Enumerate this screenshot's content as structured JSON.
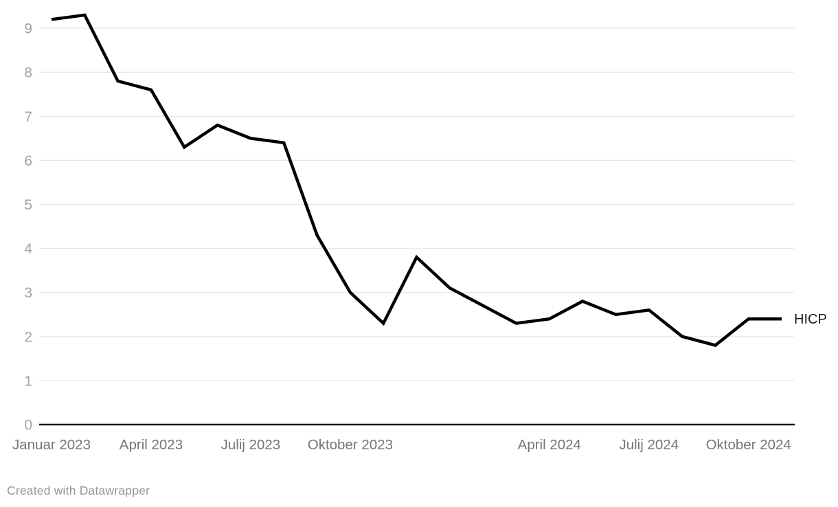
{
  "chart_data": {
    "type": "line",
    "title": "",
    "x": [
      "Januar 2023",
      "Februar 2023",
      "Marec 2023",
      "April 2023",
      "Maj 2023",
      "Junij 2023",
      "Julij 2023",
      "Avgust 2023",
      "September 2023",
      "Oktober 2023",
      "November 2023",
      "December 2023",
      "Januar 2024",
      "Februar 2024",
      "Marec 2024",
      "April 2024",
      "Maj 2024",
      "Junij 2024",
      "Julij 2024",
      "Avgust 2024",
      "September 2024",
      "Oktober 2024",
      "November 2024"
    ],
    "series": [
      {
        "name": "HICP",
        "values": [
          9.2,
          9.3,
          7.8,
          7.6,
          6.3,
          6.8,
          6.5,
          6.4,
          4.3,
          3.0,
          2.3,
          3.8,
          3.1,
          2.7,
          2.3,
          2.4,
          2.8,
          2.5,
          2.6,
          2.0,
          1.8,
          2.4,
          2.4
        ]
      }
    ],
    "line_label": "HICP",
    "xlabel": "",
    "ylabel": "",
    "ylim": [
      0,
      9.3
    ],
    "y_ticks": [
      0,
      1,
      2,
      3,
      4,
      5,
      6,
      7,
      8,
      9
    ],
    "x_tick_labels": [
      {
        "label": "Januar 2023",
        "index": 0
      },
      {
        "label": "April 2023",
        "index": 3
      },
      {
        "label": "Julij 2023",
        "index": 6
      },
      {
        "label": "Oktober 2023",
        "index": 9
      },
      {
        "label": "April 2024",
        "index": 15
      },
      {
        "label": "Julij 2024",
        "index": 18
      },
      {
        "label": "Oktober 2024",
        "index": 21
      }
    ],
    "grid": "horizontal",
    "legend_position": "line-end-right"
  },
  "colors": {
    "line": "#000000",
    "grid": "#e8e8e8",
    "axis": "#1a1a1a",
    "y_tick_text": "#a3a3a3",
    "x_tick_text": "#757575",
    "line_label_text": "#1a1a1a",
    "credit_text": "#969696",
    "background": "#ffffff"
  },
  "footer": {
    "credit": "Created with Datawrapper"
  }
}
